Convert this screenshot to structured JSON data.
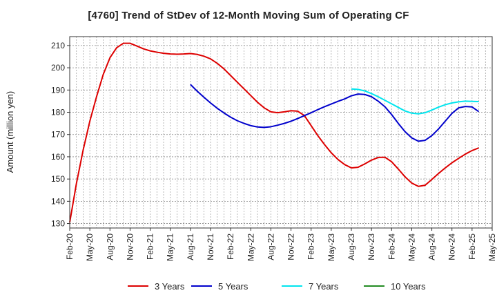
{
  "chart_data": {
    "type": "line",
    "title": "[4760]  Trend of StDev of 12-Month Moving Sum of Operating CF",
    "ylabel": "Amount (million yen)",
    "xlabel": "",
    "ylim": [
      128,
      214
    ],
    "yticks": [
      130,
      140,
      150,
      160,
      170,
      180,
      190,
      200,
      210
    ],
    "x_range": [
      "2020-02",
      "2025-05"
    ],
    "xticks": [
      "Feb-20",
      "May-20",
      "Aug-20",
      "Nov-20",
      "Feb-21",
      "May-21",
      "Aug-21",
      "Nov-21",
      "Feb-22",
      "May-22",
      "Aug-22",
      "Nov-22",
      "Feb-23",
      "May-23",
      "Aug-23",
      "Nov-23",
      "Feb-24",
      "May-24",
      "Aug-24",
      "Nov-24",
      "Feb-25",
      "May-25"
    ],
    "grid": true,
    "legend_position": "bottom",
    "series": [
      {
        "name": "3 Years",
        "color": "#dd0000",
        "points": [
          [
            "2020-02",
            130.5
          ],
          [
            "2020-03",
            148
          ],
          [
            "2020-04",
            163
          ],
          [
            "2020-05",
            176
          ],
          [
            "2020-06",
            187
          ],
          [
            "2020-07",
            197
          ],
          [
            "2020-08",
            204.5
          ],
          [
            "2020-09",
            209
          ],
          [
            "2020-10",
            211
          ],
          [
            "2020-11",
            211
          ],
          [
            "2020-12",
            209.8
          ],
          [
            "2021-01",
            208.5
          ],
          [
            "2021-02",
            207.6
          ],
          [
            "2021-03",
            207
          ],
          [
            "2021-04",
            206.5
          ],
          [
            "2021-05",
            206.2
          ],
          [
            "2021-06",
            206.1
          ],
          [
            "2021-07",
            206.2
          ],
          [
            "2021-08",
            206.4
          ],
          [
            "2021-09",
            206
          ],
          [
            "2021-10",
            205.2
          ],
          [
            "2021-11",
            204
          ],
          [
            "2021-12",
            202
          ],
          [
            "2022-01",
            199.5
          ],
          [
            "2022-02",
            196.5
          ],
          [
            "2022-03",
            193.5
          ],
          [
            "2022-04",
            190.5
          ],
          [
            "2022-05",
            187.5
          ],
          [
            "2022-06",
            184.5
          ],
          [
            "2022-07",
            182
          ],
          [
            "2022-08",
            180.2
          ],
          [
            "2022-09",
            179.8
          ],
          [
            "2022-10",
            180.2
          ],
          [
            "2022-11",
            180.7
          ],
          [
            "2022-12",
            180.5
          ],
          [
            "2023-01",
            178.5
          ],
          [
            "2023-02",
            174
          ],
          [
            "2023-03",
            169.5
          ],
          [
            "2023-04",
            165.5
          ],
          [
            "2023-05",
            161.8
          ],
          [
            "2023-06",
            158.8
          ],
          [
            "2023-07",
            156.5
          ],
          [
            "2023-08",
            155
          ],
          [
            "2023-09",
            155.3
          ],
          [
            "2023-10",
            156.8
          ],
          [
            "2023-11",
            158.5
          ],
          [
            "2023-12",
            159.7
          ],
          [
            "2024-01",
            159.8
          ],
          [
            "2024-02",
            157.8
          ],
          [
            "2024-03",
            154.5
          ],
          [
            "2024-04",
            151
          ],
          [
            "2024-05",
            148.2
          ],
          [
            "2024-06",
            146.7
          ],
          [
            "2024-07",
            147.2
          ],
          [
            "2024-08",
            149.8
          ],
          [
            "2024-09",
            152.5
          ],
          [
            "2024-10",
            155
          ],
          [
            "2024-11",
            157.3
          ],
          [
            "2024-12",
            159.3
          ],
          [
            "2025-01",
            161.2
          ],
          [
            "2025-02",
            162.8
          ],
          [
            "2025-03",
            164
          ]
        ]
      },
      {
        "name": "5 Years",
        "color": "#0000cc",
        "points": [
          [
            "2021-08",
            192.5
          ],
          [
            "2021-09",
            189.5
          ],
          [
            "2021-10",
            186.8
          ],
          [
            "2021-11",
            184.2
          ],
          [
            "2021-12",
            181.8
          ],
          [
            "2022-01",
            179.7
          ],
          [
            "2022-02",
            177.8
          ],
          [
            "2022-03",
            176.2
          ],
          [
            "2022-04",
            175
          ],
          [
            "2022-05",
            174
          ],
          [
            "2022-06",
            173.4
          ],
          [
            "2022-07",
            173.2
          ],
          [
            "2022-08",
            173.5
          ],
          [
            "2022-09",
            174.2
          ],
          [
            "2022-10",
            175
          ],
          [
            "2022-11",
            176
          ],
          [
            "2022-12",
            177.2
          ],
          [
            "2023-01",
            178.5
          ],
          [
            "2023-02",
            179.8
          ],
          [
            "2023-03",
            181.2
          ],
          [
            "2023-04",
            182.5
          ],
          [
            "2023-05",
            183.7
          ],
          [
            "2023-06",
            184.9
          ],
          [
            "2023-07",
            186
          ],
          [
            "2023-08",
            187.4
          ],
          [
            "2023-09",
            188.2
          ],
          [
            "2023-10",
            188
          ],
          [
            "2023-11",
            187
          ],
          [
            "2023-12",
            185
          ],
          [
            "2024-01",
            182.5
          ],
          [
            "2024-02",
            179
          ],
          [
            "2024-03",
            175
          ],
          [
            "2024-04",
            171.3
          ],
          [
            "2024-05",
            168.5
          ],
          [
            "2024-06",
            167
          ],
          [
            "2024-07",
            167.4
          ],
          [
            "2024-08",
            169.5
          ],
          [
            "2024-09",
            172.5
          ],
          [
            "2024-10",
            176
          ],
          [
            "2024-11",
            179.5
          ],
          [
            "2024-12",
            182
          ],
          [
            "2025-01",
            182.6
          ],
          [
            "2025-02",
            182.4
          ],
          [
            "2025-03",
            180.3
          ]
        ]
      },
      {
        "name": "7 Years",
        "color": "#00e5ee",
        "points": [
          [
            "2023-08",
            190.5
          ],
          [
            "2023-09",
            190.3
          ],
          [
            "2023-10",
            189.6
          ],
          [
            "2023-11",
            188.4
          ],
          [
            "2023-12",
            187
          ],
          [
            "2024-01",
            185.4
          ],
          [
            "2024-02",
            183.8
          ],
          [
            "2024-03",
            182.2
          ],
          [
            "2024-04",
            180.6
          ],
          [
            "2024-05",
            179.6
          ],
          [
            "2024-06",
            179.3
          ],
          [
            "2024-07",
            179.8
          ],
          [
            "2024-08",
            181
          ],
          [
            "2024-09",
            182.3
          ],
          [
            "2024-10",
            183.4
          ],
          [
            "2024-11",
            184.2
          ],
          [
            "2024-12",
            184.7
          ],
          [
            "2025-01",
            185
          ],
          [
            "2025-02",
            184.9
          ],
          [
            "2025-03",
            184.8
          ]
        ]
      },
      {
        "name": "10 Years",
        "color": "#228b22",
        "points": []
      }
    ]
  }
}
